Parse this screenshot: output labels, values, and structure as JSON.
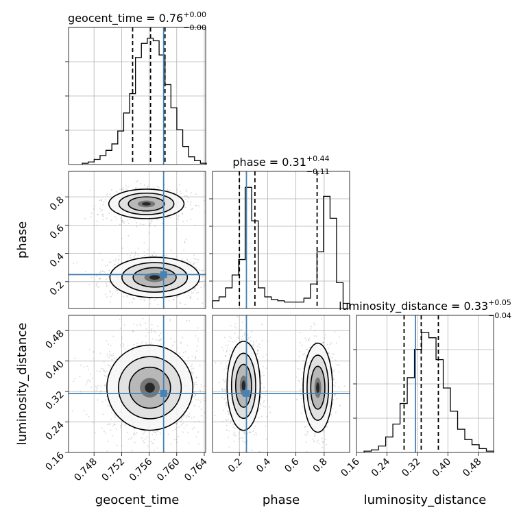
{
  "chart_data": {
    "type": "corner",
    "title": "",
    "parameters": [
      {
        "key": "geocent_time",
        "label": "geocent_time",
        "range": [
          0.7443,
          0.7642
        ],
        "ticks": [
          0.748,
          0.752,
          0.756,
          0.76,
          0.764
        ],
        "tick_labels": [
          "0.748",
          "0.752",
          "0.756",
          "0.760",
          "0.764"
        ],
        "truth": 0.7581,
        "quantiles": [
          0.7536,
          0.7562,
          0.7583
        ]
      },
      {
        "key": "phase",
        "label": "phase",
        "range": [
          0.01,
          0.98
        ],
        "ticks": [
          0.2,
          0.4,
          0.6,
          0.8
        ],
        "tick_labels": [
          "0.2",
          "0.4",
          "0.6",
          "0.8"
        ],
        "truth": 0.25,
        "quantiles": [
          0.2,
          0.31,
          0.75
        ]
      },
      {
        "key": "luminosity_distance",
        "label": "luminosity_distance",
        "range": [
          0.16,
          0.52
        ],
        "ticks": [
          0.16,
          0.24,
          0.32,
          0.4,
          0.48
        ],
        "tick_labels": [
          "0.16",
          "0.24",
          "0.32",
          "0.40",
          "0.48"
        ],
        "truth": 0.315,
        "quantiles": [
          0.285,
          0.33,
          0.375
        ]
      }
    ],
    "titles": [
      {
        "name": "geocent_time",
        "value": "0.76",
        "plus": "+0.00",
        "minus": "−0.00"
      },
      {
        "name": "phase",
        "value": "0.31",
        "plus": "+0.44",
        "minus": "−0.11"
      },
      {
        "name": "luminosity_distance",
        "value": "0.33",
        "plus": "+0.05",
        "minus": "−0.04"
      }
    ],
    "histograms": {
      "geocent_time": [
        1,
        2,
        4,
        7,
        11,
        16,
        26,
        40,
        55,
        83,
        94,
        98,
        96,
        85,
        62,
        44,
        27,
        14,
        6,
        3,
        1
      ],
      "phase": [
        6,
        9,
        16,
        26,
        38,
        94,
        68,
        16,
        9,
        7,
        6,
        5,
        5,
        5,
        8,
        19,
        44,
        87,
        70,
        20,
        4
      ],
      "luminosity_distance": [
        1,
        2,
        5,
        12,
        22,
        38,
        58,
        80,
        93,
        89,
        72,
        50,
        32,
        18,
        10,
        6,
        3,
        1
      ]
    },
    "truth_color": "#4682b4",
    "grid": true
  }
}
